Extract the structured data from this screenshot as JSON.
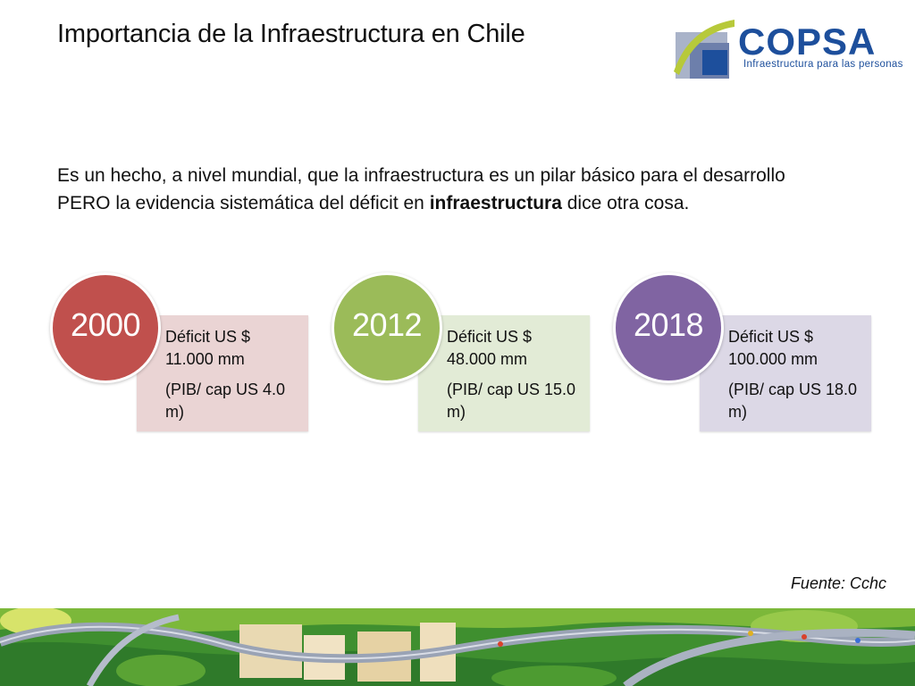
{
  "slide": {
    "title": "Importancia de la Infraestructura en Chile",
    "intro_part1": "Es un hecho, a nivel mundial, que la infraestructura es un pilar básico para el desarrollo PERO la evidencia sistemática del déficit en ",
    "intro_bold": "infraestructura",
    "intro_part2": " dice otra cosa.",
    "source": "Fuente: Cchc"
  },
  "logo": {
    "name": "COPSA",
    "tagline": "Infraestructura para las personas",
    "colors": {
      "primary": "#1d4f9c",
      "accent": "#b7c93a"
    }
  },
  "cards": [
    {
      "year": "2000",
      "deficit": "Déficit US $ 11.000 mm",
      "pib": "(PIB/ cap US 4.0 m)",
      "circle_color": "#c0504d",
      "box_color": "#ead4d4"
    },
    {
      "year": "2012",
      "deficit": "Déficit US $ 48.000 mm",
      "pib": "(PIB/ cap US 15.0 m)",
      "circle_color": "#9bbb59",
      "box_color": "#e2ebd6"
    },
    {
      "year": "2018",
      "deficit": "Déficit US $ 100.000 mm",
      "pib": "(PIB/ cap US 18.0 m)",
      "circle_color": "#8064a2",
      "box_color": "#dcd8e6"
    }
  ]
}
